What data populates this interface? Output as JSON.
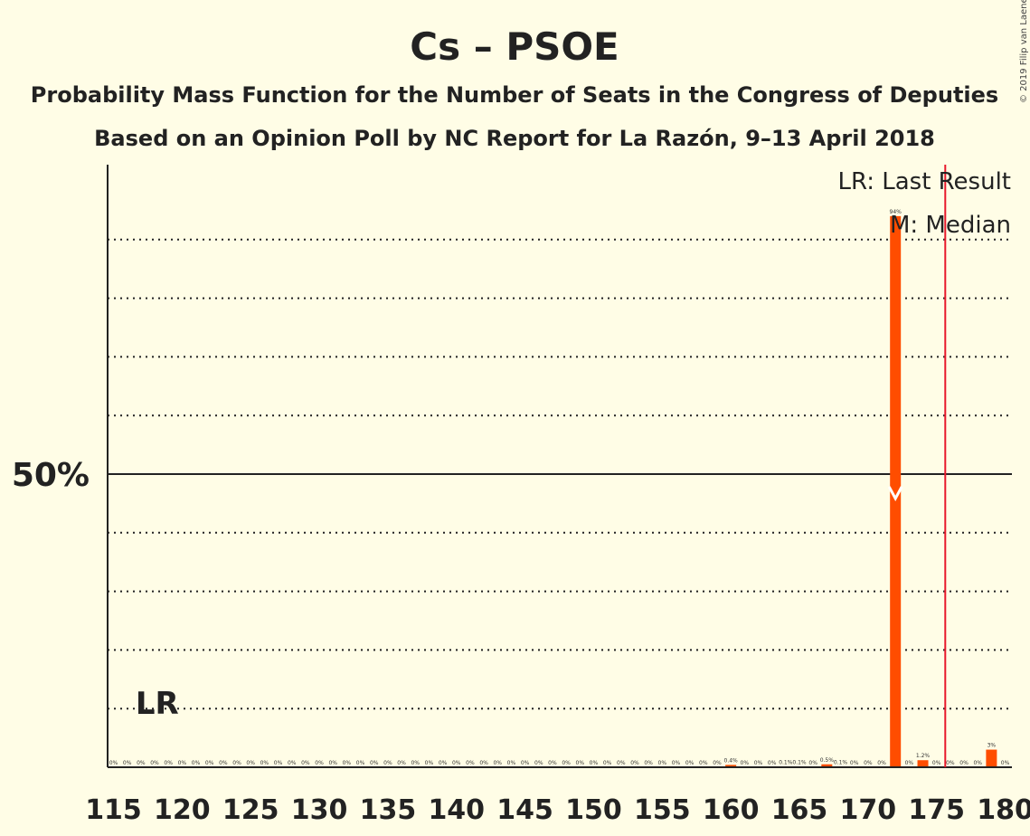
{
  "chart_data": {
    "type": "bar",
    "title": "Cs – PSOE",
    "subtitle": "Probability Mass Function for the Number of Seats in the Congress of Deputies",
    "subtitle2": "Based on an Opinion Poll by NC Report for La Razón, 9–13 April 2018",
    "copyright": "© 2019 Filip van Laenen",
    "legend": {
      "lr": "LR: Last Result",
      "m": "M: Median",
      "position": "top-right"
    },
    "ylabel_50": "50%",
    "lr_marker_label": "LR",
    "xlim": [
      115,
      180
    ],
    "ylim": [
      0,
      100
    ],
    "xticks": [
      "115",
      "120",
      "125",
      "130",
      "135",
      "140",
      "145",
      "150",
      "155",
      "160",
      "165",
      "170",
      "175",
      "180"
    ],
    "last_result_seat": 117,
    "majority_line_seat": 176,
    "median_seat": 172,
    "colors": {
      "bar": "#ff4d00",
      "majority_line": "#e8192c",
      "text": "#222222",
      "background": "#fffde6"
    },
    "x": [
      115,
      116,
      117,
      118,
      119,
      120,
      121,
      122,
      123,
      124,
      125,
      126,
      127,
      128,
      129,
      130,
      131,
      132,
      133,
      134,
      135,
      136,
      137,
      138,
      139,
      140,
      141,
      142,
      143,
      144,
      145,
      146,
      147,
      148,
      149,
      150,
      151,
      152,
      153,
      154,
      155,
      156,
      157,
      158,
      159,
      160,
      161,
      162,
      163,
      164,
      165,
      166,
      167,
      168,
      169,
      170,
      171,
      172,
      173,
      174,
      175,
      176,
      177,
      178,
      179,
      180
    ],
    "values": [
      0,
      0,
      0,
      0,
      0,
      0,
      0,
      0,
      0,
      0,
      0,
      0,
      0,
      0,
      0,
      0,
      0,
      0,
      0,
      0,
      0,
      0,
      0,
      0,
      0,
      0,
      0,
      0,
      0,
      0,
      0,
      0,
      0,
      0,
      0,
      0,
      0,
      0,
      0,
      0,
      0,
      0,
      0,
      0,
      0,
      0.4,
      0,
      0,
      0,
      0.1,
      0.1,
      0,
      0.5,
      0.1,
      0,
      0,
      0,
      94,
      0,
      1.2,
      0,
      0,
      0,
      0,
      3,
      0
    ],
    "labels": [
      "0%",
      "0%",
      "0%",
      "0%",
      "0%",
      "0%",
      "0%",
      "0%",
      "0%",
      "0%",
      "0%",
      "0%",
      "0%",
      "0%",
      "0%",
      "0%",
      "0%",
      "0%",
      "0%",
      "0%",
      "0%",
      "0%",
      "0%",
      "0%",
      "0%",
      "0%",
      "0%",
      "0%",
      "0%",
      "0%",
      "0%",
      "0%",
      "0%",
      "0%",
      "0%",
      "0%",
      "0%",
      "0%",
      "0%",
      "0%",
      "0%",
      "0%",
      "0%",
      "0%",
      "0%",
      "0.4%",
      "0%",
      "0%",
      "0%",
      "0.1%",
      "0.1%",
      "0%",
      "0.5%",
      "0.1%",
      "0%",
      "0%",
      "0%",
      "94%",
      "0%",
      "1.2%",
      "0%",
      "0%",
      "0%",
      "0%",
      "3%",
      "0%"
    ]
  }
}
